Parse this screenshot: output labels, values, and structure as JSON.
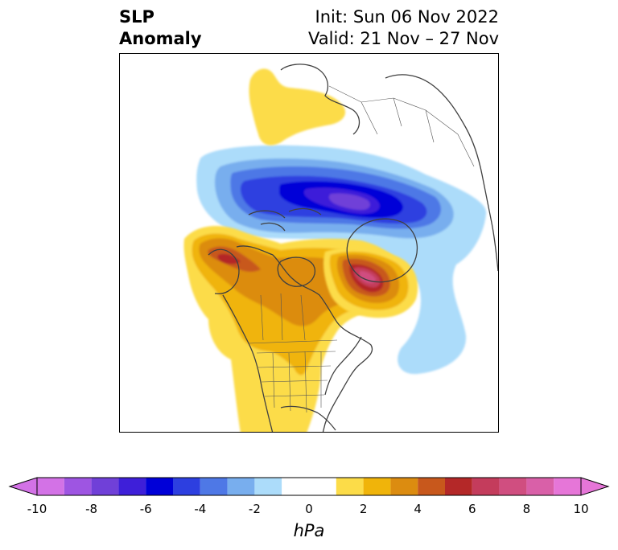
{
  "title": {
    "left_line1": "SLP",
    "left_line2": "Anomaly",
    "right_line1": "Init: Sun 06 Nov 2022",
    "right_line2": "Valid: 21 Nov – 27 Nov"
  },
  "colorbar": {
    "unit": "hPa",
    "min": -10,
    "max": 10,
    "extend": "both",
    "ticks": [
      "-10",
      "-8",
      "-6",
      "-4",
      "-2",
      "0",
      "2",
      "4",
      "6",
      "8",
      "10"
    ],
    "bins": [
      {
        "from": -10,
        "to": -9,
        "color": "#d372e6"
      },
      {
        "from": -9,
        "to": -8,
        "color": "#9e55e2"
      },
      {
        "from": -8,
        "to": -7,
        "color": "#7040d8"
      },
      {
        "from": -7,
        "to": -6,
        "color": "#3e1fd9"
      },
      {
        "from": -6,
        "to": -5,
        "color": "#0000d8"
      },
      {
        "from": -5,
        "to": -4,
        "color": "#2d3fe0"
      },
      {
        "from": -4,
        "to": -3,
        "color": "#4e78e6"
      },
      {
        "from": -3,
        "to": -2,
        "color": "#78aeee"
      },
      {
        "from": -2,
        "to": -1,
        "color": "#acdcfa"
      },
      {
        "from": -1,
        "to": 1,
        "color": "#ffffff"
      },
      {
        "from": 1,
        "to": 2,
        "color": "#fcdc48"
      },
      {
        "from": 2,
        "to": 3,
        "color": "#f0b40a"
      },
      {
        "from": 3,
        "to": 4,
        "color": "#dc8c10"
      },
      {
        "from": 4,
        "to": 5,
        "color": "#c8581c"
      },
      {
        "from": 5,
        "to": 6,
        "color": "#b42828"
      },
      {
        "from": 6,
        "to": 7,
        "color": "#c43c5c"
      },
      {
        "from": 7,
        "to": 8,
        "color": "#d04e80"
      },
      {
        "from": 8,
        "to": 9,
        "color": "#d960a8"
      },
      {
        "from": 9,
        "to": 10,
        "color": "#e676d8"
      }
    ]
  }
}
